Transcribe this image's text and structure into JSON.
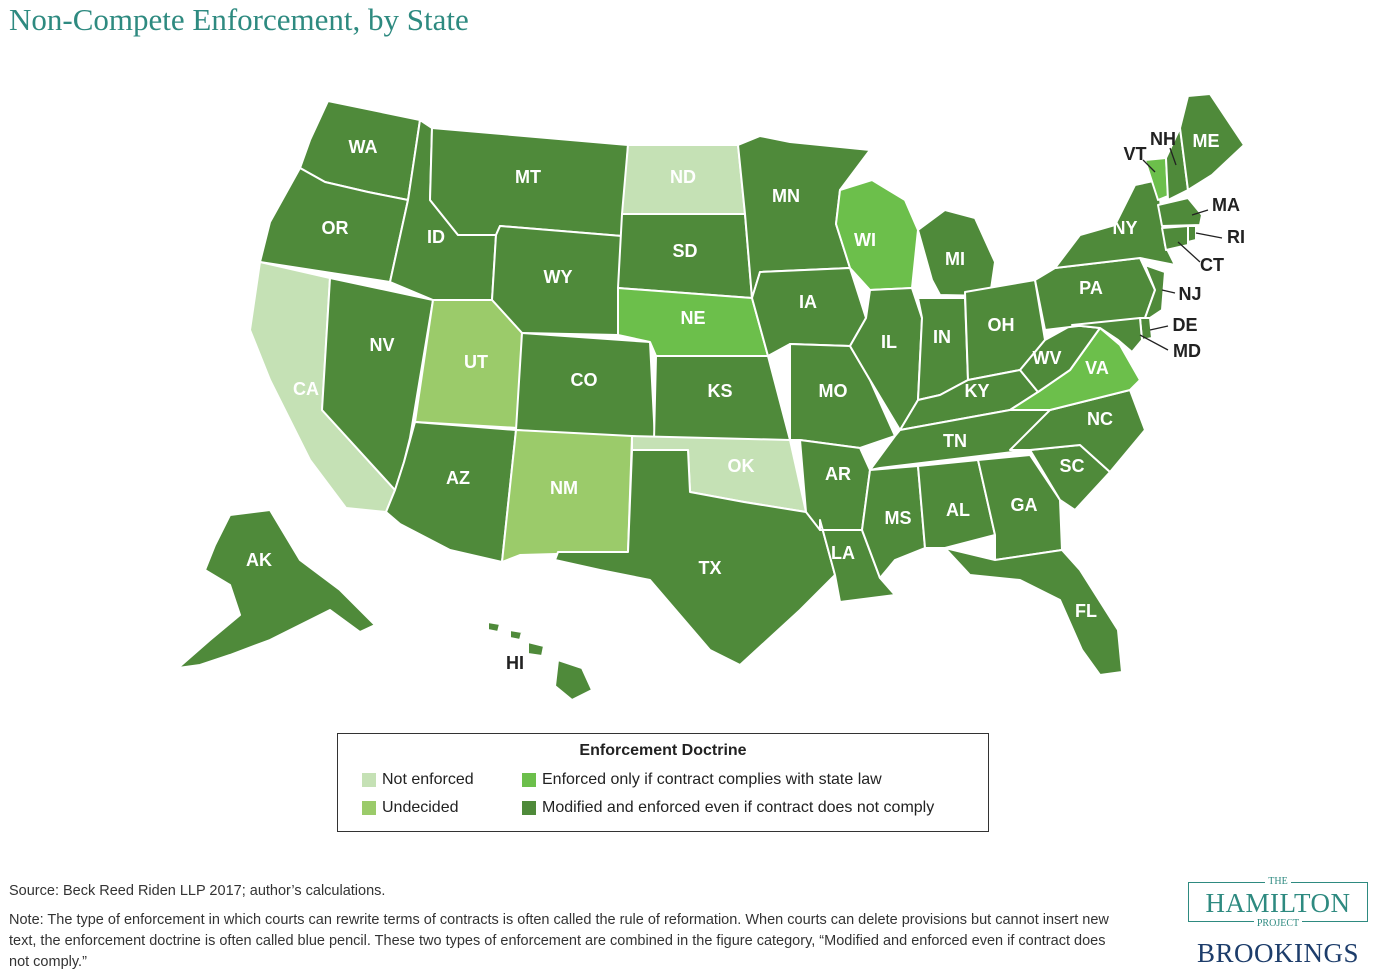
{
  "title": "Non-Compete Enforcement, by State",
  "colors": {
    "not_enforced": "#c5e1b5",
    "undecided": "#9bcb6a",
    "enforced_if_complies": "#6cbf4b",
    "modified_and_enforced": "#4f8a3a"
  },
  "legend": {
    "title": "Enforcement Doctrine",
    "items": [
      {
        "key": "not_enforced",
        "label": "Not enforced"
      },
      {
        "key": "undecided",
        "label": "Undecided"
      },
      {
        "key": "enforced_if_complies",
        "label": "Enforced only if contract complies with state law"
      },
      {
        "key": "modified_and_enforced",
        "label": "Modified and enforced even if contract does not comply"
      }
    ]
  },
  "states": [
    {
      "code": "WA",
      "category": "modified_and_enforced"
    },
    {
      "code": "OR",
      "category": "modified_and_enforced"
    },
    {
      "code": "CA",
      "category": "not_enforced"
    },
    {
      "code": "NV",
      "category": "modified_and_enforced"
    },
    {
      "code": "ID",
      "category": "modified_and_enforced"
    },
    {
      "code": "MT",
      "category": "modified_and_enforced"
    },
    {
      "code": "WY",
      "category": "modified_and_enforced"
    },
    {
      "code": "UT",
      "category": "undecided"
    },
    {
      "code": "AZ",
      "category": "modified_and_enforced"
    },
    {
      "code": "CO",
      "category": "modified_and_enforced"
    },
    {
      "code": "NM",
      "category": "undecided"
    },
    {
      "code": "ND",
      "category": "not_enforced"
    },
    {
      "code": "SD",
      "category": "modified_and_enforced"
    },
    {
      "code": "NE",
      "category": "enforced_if_complies"
    },
    {
      "code": "KS",
      "category": "modified_and_enforced"
    },
    {
      "code": "OK",
      "category": "not_enforced"
    },
    {
      "code": "TX",
      "category": "modified_and_enforced"
    },
    {
      "code": "MN",
      "category": "modified_and_enforced"
    },
    {
      "code": "IA",
      "category": "modified_and_enforced"
    },
    {
      "code": "MO",
      "category": "modified_and_enforced"
    },
    {
      "code": "AR",
      "category": "modified_and_enforced"
    },
    {
      "code": "LA",
      "category": "modified_and_enforced"
    },
    {
      "code": "WI",
      "category": "enforced_if_complies"
    },
    {
      "code": "IL",
      "category": "modified_and_enforced"
    },
    {
      "code": "MI",
      "category": "modified_and_enforced"
    },
    {
      "code": "IN",
      "category": "modified_and_enforced"
    },
    {
      "code": "OH",
      "category": "modified_and_enforced"
    },
    {
      "code": "KY",
      "category": "modified_and_enforced"
    },
    {
      "code": "TN",
      "category": "modified_and_enforced"
    },
    {
      "code": "MS",
      "category": "modified_and_enforced"
    },
    {
      "code": "AL",
      "category": "modified_and_enforced"
    },
    {
      "code": "GA",
      "category": "modified_and_enforced"
    },
    {
      "code": "FL",
      "category": "modified_and_enforced"
    },
    {
      "code": "SC",
      "category": "modified_and_enforced"
    },
    {
      "code": "NC",
      "category": "modified_and_enforced"
    },
    {
      "code": "VA",
      "category": "enforced_if_complies"
    },
    {
      "code": "WV",
      "category": "modified_and_enforced"
    },
    {
      "code": "PA",
      "category": "modified_and_enforced"
    },
    {
      "code": "NY",
      "category": "modified_and_enforced"
    },
    {
      "code": "VT",
      "category": "enforced_if_complies"
    },
    {
      "code": "NH",
      "category": "modified_and_enforced"
    },
    {
      "code": "ME",
      "category": "modified_and_enforced"
    },
    {
      "code": "MA",
      "category": "modified_and_enforced"
    },
    {
      "code": "RI",
      "category": "modified_and_enforced"
    },
    {
      "code": "CT",
      "category": "modified_and_enforced"
    },
    {
      "code": "NJ",
      "category": "modified_and_enforced"
    },
    {
      "code": "DE",
      "category": "modified_and_enforced"
    },
    {
      "code": "MD",
      "category": "modified_and_enforced"
    },
    {
      "code": "AK",
      "category": "modified_and_enforced"
    },
    {
      "code": "HI",
      "category": "modified_and_enforced"
    }
  ],
  "source": "Source: Beck Reed Riden LLP 2017; author’s calculations.",
  "note": "Note: The type of enforcement in which courts can rewrite terms of contracts is often called the rule of reformation. When courts can delete provisions but cannot insert new text, the enforcement doctrine is often called blue pencil. These two types of enforcement are combined in the figure category, “Modified and enforced even if contract does not comply.”",
  "logo": {
    "the": "THE",
    "hamilton": "HAMILTON",
    "project": "PROJECT",
    "brookings": "BROOKINGS"
  }
}
